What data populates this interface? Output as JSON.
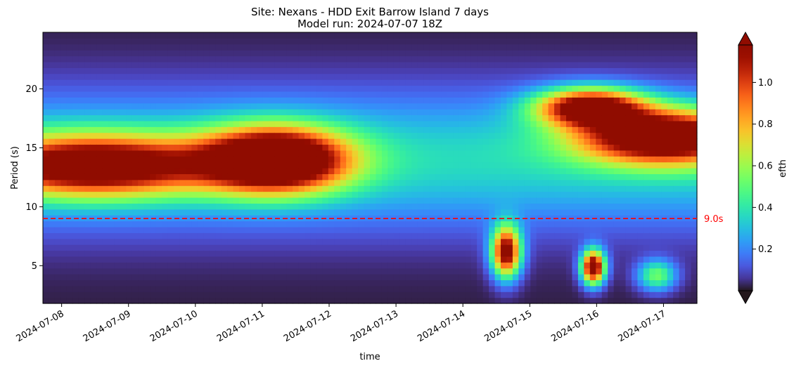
{
  "chart_data": {
    "type": "heatmap",
    "title_lines": [
      "Site: Nexans - HDD Exit Barrow Island 7 days",
      "Model run: 2024-07-07 18Z"
    ],
    "xlabel": "time",
    "ylabel": "Period (s)",
    "x_tick_labels": [
      "2024-07-08",
      "2024-07-09",
      "2024-07-10",
      "2024-07-11",
      "2024-07-12",
      "2024-07-13",
      "2024-07-14",
      "2024-07-15",
      "2024-07-16",
      "2024-07-17"
    ],
    "y_ticks": [
      5,
      10,
      15,
      20
    ],
    "ylim": [
      1.8,
      24.8
    ],
    "xlim_days": [
      -0.28,
      9.5
    ],
    "colorbar": {
      "label": "efth",
      "ticks": [
        0.2,
        0.4,
        0.6,
        0.8,
        1.0
      ],
      "tick_labels": [
        "0.2",
        "0.4",
        "0.6",
        "0.8",
        "1.0"
      ],
      "range": [
        0.0,
        1.18
      ],
      "extend": "both",
      "colormap": "turbo"
    },
    "reference_line": {
      "period": 9.0,
      "label": "9.0s",
      "color": "#ff0000",
      "style": "dashed"
    },
    "energy_features": [
      {
        "name": "long-period swell band 08-09 Jul",
        "t_center": 0.5,
        "t_sigma": 1.2,
        "p_center": 13.5,
        "p_sigma": 1.8,
        "peak": 1.1
      },
      {
        "name": "swell peak 11 Jul",
        "t_center": 3.2,
        "t_sigma": 0.75,
        "p_center": 14.0,
        "p_sigma": 1.9,
        "peak": 1.35
      },
      {
        "name": "swell onset 15-16 Jul",
        "t_center": 7.9,
        "t_sigma": 0.55,
        "p_center": 18.5,
        "p_sigma": 1.1,
        "peak": 1.15
      },
      {
        "name": "swell band 16-17 Jul",
        "t_center": 9.0,
        "t_sigma": 0.9,
        "p_center": 16.0,
        "p_sigma": 1.6,
        "peak": 1.2
      },
      {
        "name": "wind sea 14-15 Jul",
        "t_center": 6.65,
        "t_sigma": 0.15,
        "p_center": 6.2,
        "p_sigma": 1.5,
        "peak": 1.2
      },
      {
        "name": "wind sea 16 Jul",
        "t_center": 7.95,
        "t_sigma": 0.12,
        "p_center": 4.9,
        "p_sigma": 1.0,
        "peak": 1.3
      },
      {
        "name": "wind sea 17 Jul",
        "t_center": 8.9,
        "t_sigma": 0.2,
        "p_center": 4.2,
        "p_sigma": 0.9,
        "peak": 0.5
      }
    ]
  }
}
